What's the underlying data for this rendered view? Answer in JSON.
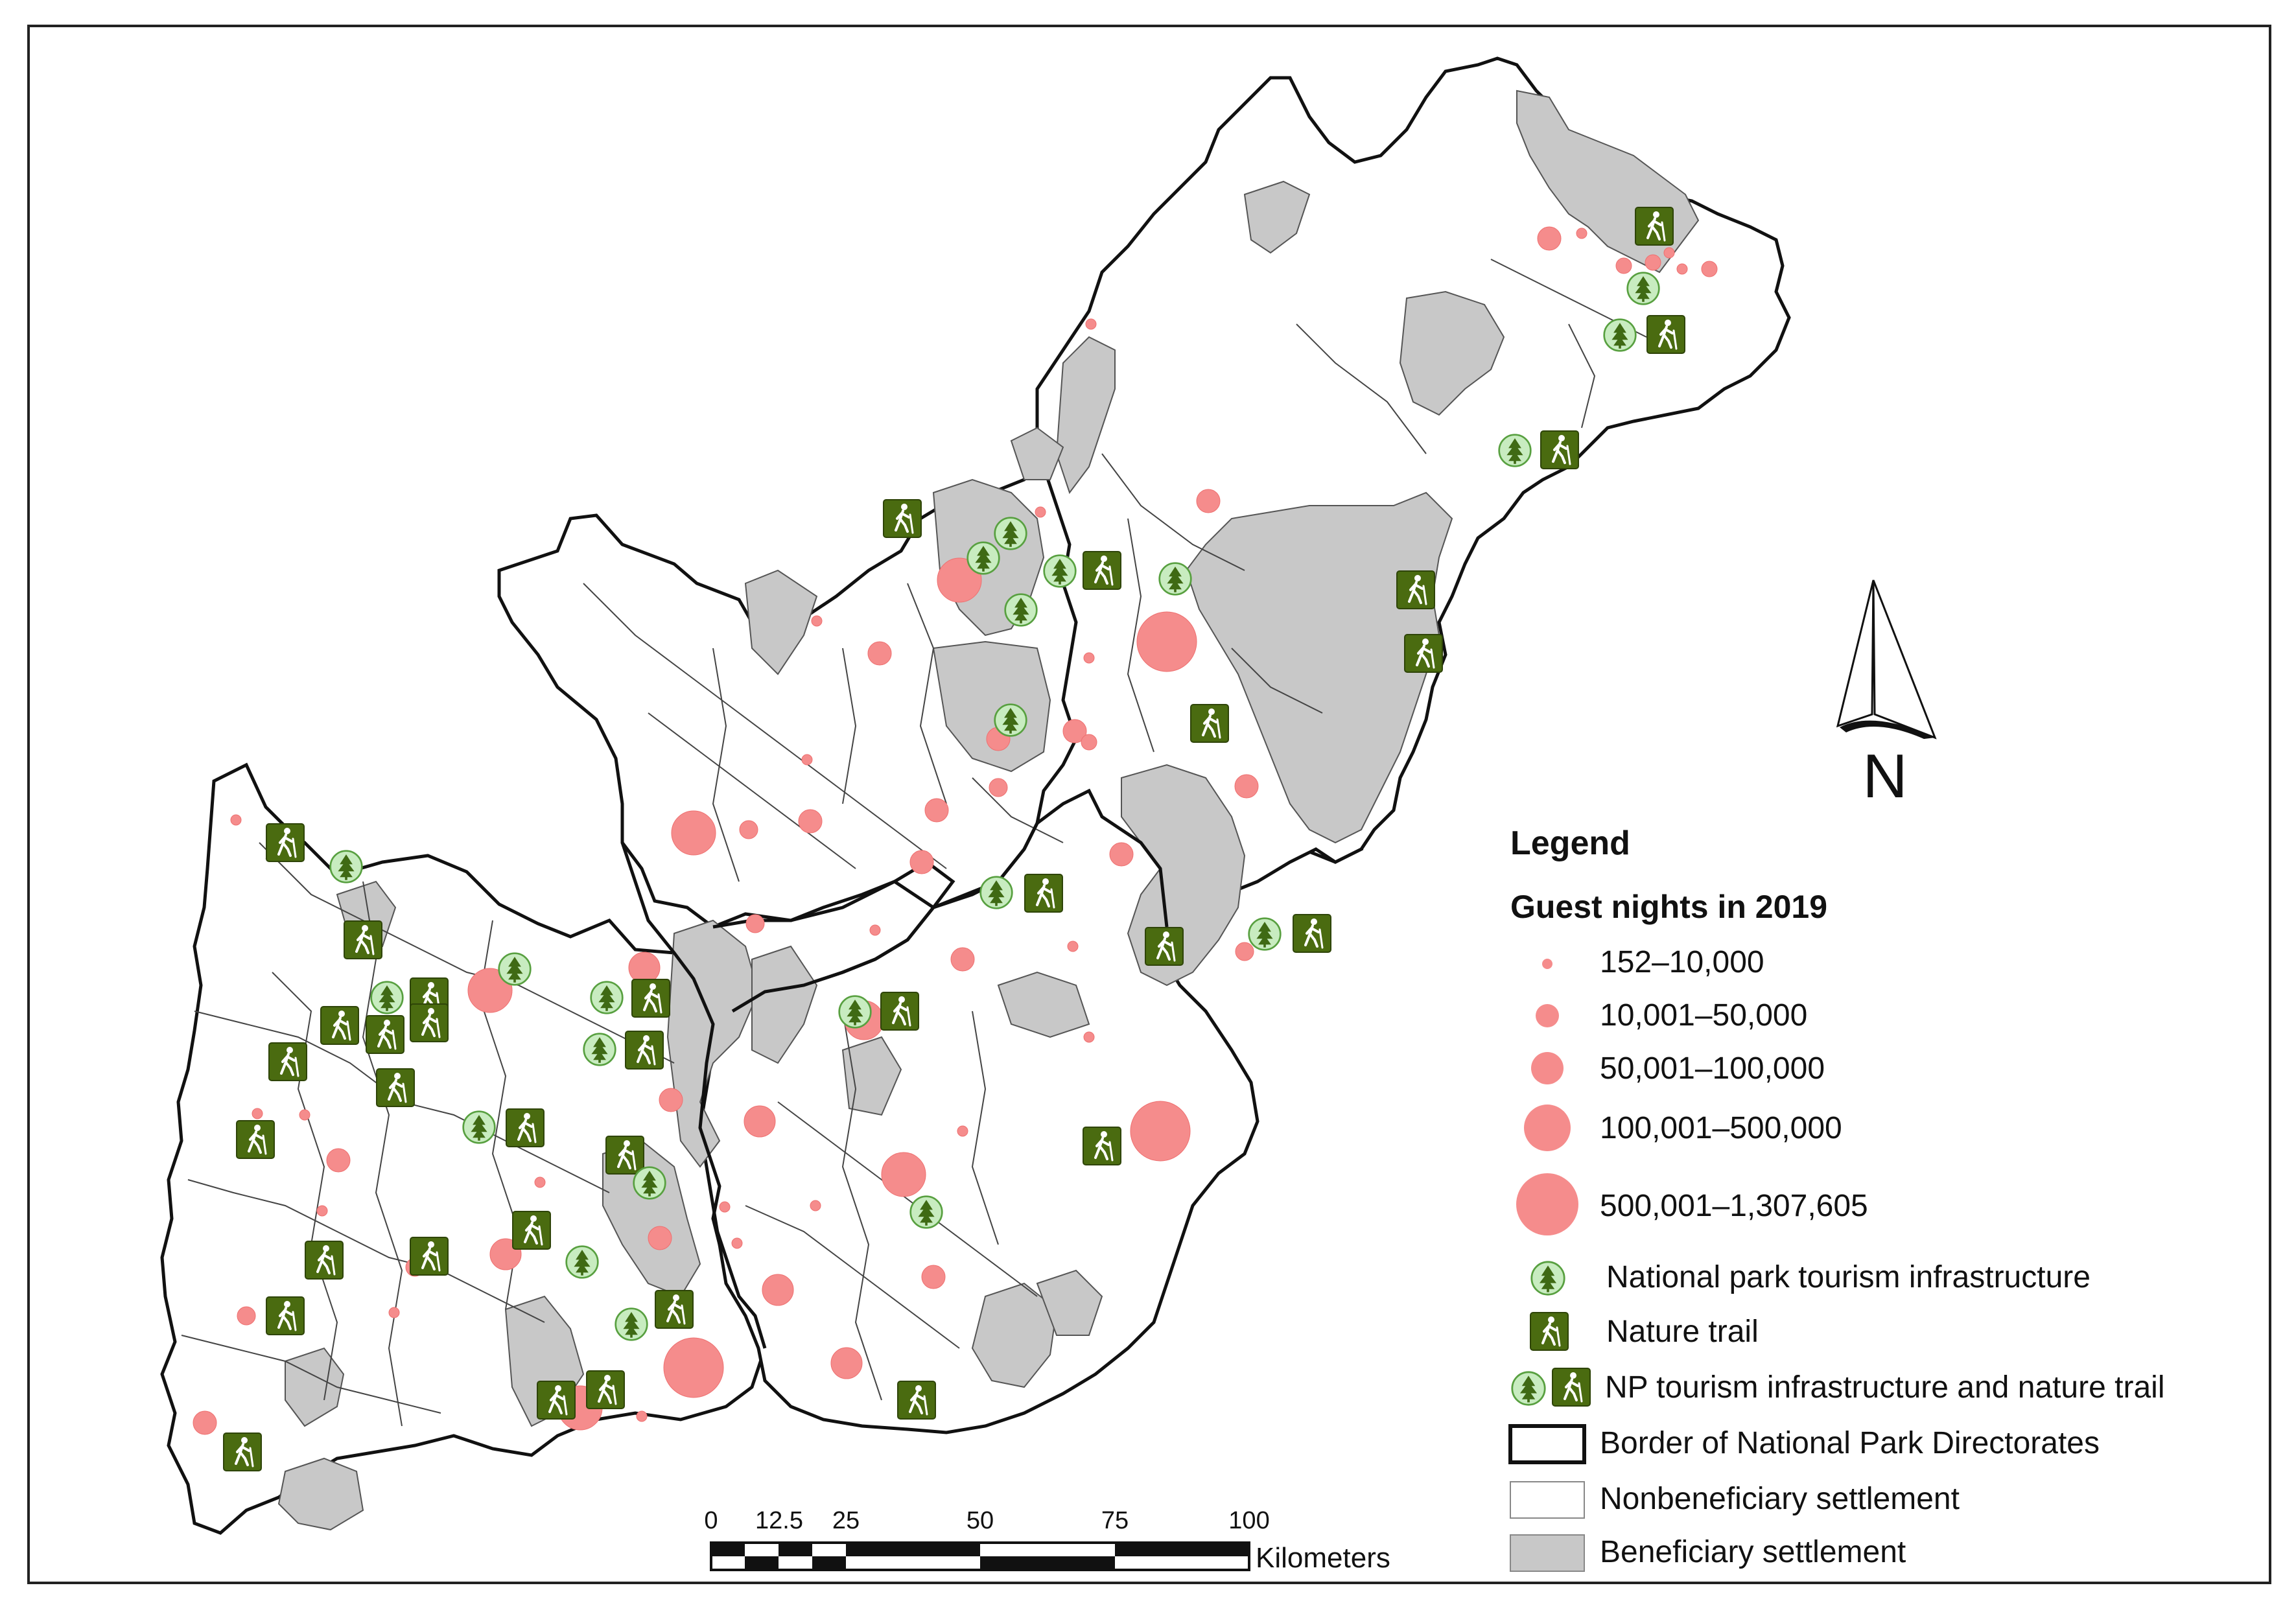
{
  "legend": {
    "title": "Legend",
    "subtitle": "Guest nights in 2019",
    "guest_classes": [
      {
        "label": "152–10,000"
      },
      {
        "label": "10,001–50,000"
      },
      {
        "label": "50,001–100,000"
      },
      {
        "label": "100,001–500,000"
      },
      {
        "label": "500,001–1,307,605"
      }
    ],
    "symbols": [
      {
        "label": "National park tourism infrastructure",
        "icon": "tree-icon"
      },
      {
        "label": "Nature trail",
        "icon": "hiker-icon"
      },
      {
        "label": "NP tourism infrastructure and nature trail",
        "icon": "tree-and-hiker-icon"
      },
      {
        "label": "Border of National Park Directorates",
        "icon": "thick-border-box"
      },
      {
        "label": "Nonbeneficiary settlement",
        "icon": "white-box"
      },
      {
        "label": "Beneficiary settlement",
        "icon": "grey-box"
      }
    ]
  },
  "north_arrow": {
    "label": "N"
  },
  "scale_bar": {
    "ticks": [
      "0",
      "12.5",
      "25",
      "50",
      "75",
      "100"
    ],
    "unit": "Kilometers"
  },
  "colors": {
    "guest_circle": "#f58c8c",
    "beneficiary": "#c8c8c8",
    "nonbeneficiary": "#ffffff",
    "icon_green": "#4a6b10",
    "icon_light_green": "#c8ecc0"
  }
}
